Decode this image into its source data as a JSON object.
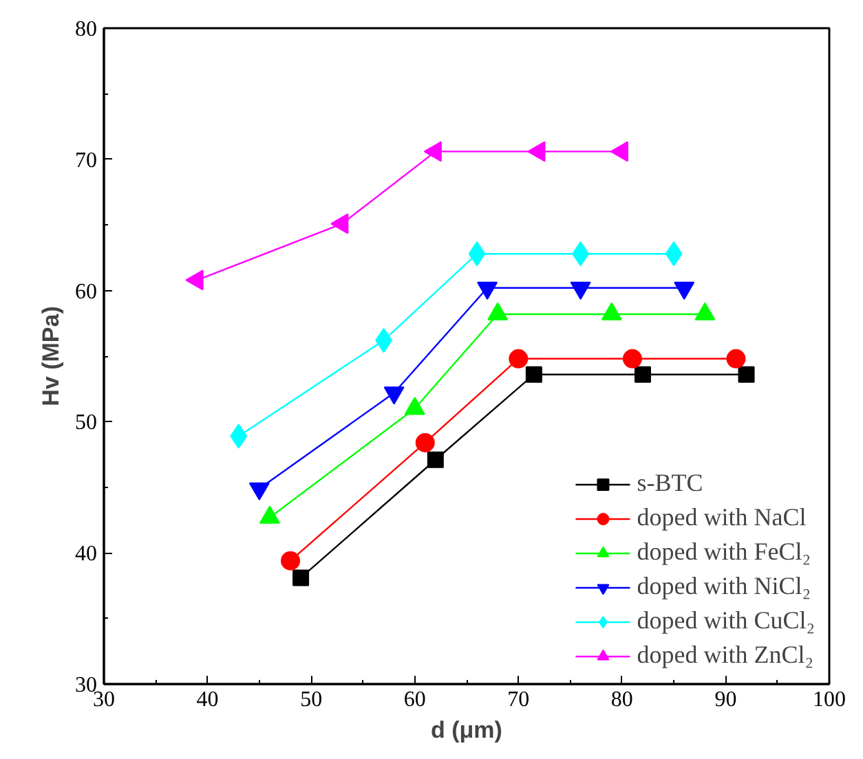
{
  "chart_data": {
    "type": "line",
    "xlabel": "d (μm)",
    "ylabel": "Hv (MPa)",
    "xlim": [
      30,
      100
    ],
    "xticks": [
      30,
      40,
      50,
      60,
      70,
      80,
      90,
      100
    ],
    "ylim": [
      30,
      80
    ],
    "yticks": [
      30,
      40,
      50,
      60,
      70,
      80
    ],
    "grid": false,
    "legend": "bottom right",
    "series": [
      {
        "name": "s-BTC",
        "color": "#000000",
        "marker": "square",
        "x": [
          49,
          62,
          71.5,
          82,
          92
        ],
        "values": [
          38.1,
          47.1,
          53.6,
          53.6,
          53.6
        ]
      },
      {
        "name": "doped with NaCl",
        "color": "#ff0000",
        "marker": "circle",
        "x": [
          48,
          61,
          70,
          81,
          91
        ],
        "values": [
          39.4,
          48.4,
          54.8,
          54.8,
          54.8
        ]
      },
      {
        "name": "doped with FeCl₂",
        "color": "#00ff00",
        "marker": "triangle",
        "x": [
          46,
          60,
          68,
          79,
          88
        ],
        "values": [
          42.7,
          51.0,
          58.2,
          58.2,
          58.2
        ]
      },
      {
        "name": "doped with NiCl₂",
        "color": "#0000ff",
        "marker": "triangle",
        "x": [
          45,
          58,
          67,
          76,
          86
        ],
        "values": [
          44.9,
          52.2,
          60.2,
          60.2,
          60.2
        ]
      },
      {
        "name": "doped with CuCl₂",
        "color": "#00ffff",
        "marker": "diamond",
        "x": [
          43,
          57,
          66,
          76,
          85
        ],
        "values": [
          48.9,
          56.2,
          62.8,
          62.8,
          62.8
        ]
      },
      {
        "name": "doped with ZnCl₂",
        "color": "#ff00ff",
        "marker": "triangle",
        "x": [
          39,
          53,
          62,
          72,
          80
        ],
        "values": [
          60.8,
          65.1,
          70.6,
          70.6,
          70.6
        ]
      }
    ]
  }
}
